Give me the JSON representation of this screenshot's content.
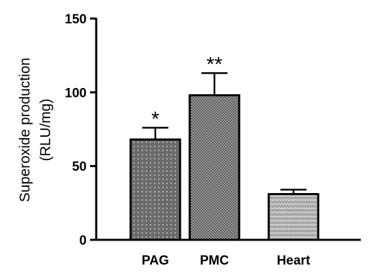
{
  "chart_data": {
    "type": "bar",
    "categories": [
      "PAG",
      "PMC",
      "Heart"
    ],
    "values": [
      68,
      98,
      31
    ],
    "errors": [
      8,
      15,
      3
    ],
    "annotations": [
      "*",
      "**",
      ""
    ],
    "ylabel_line1": "Superoxide production",
    "ylabel_line2": "(RLU/mg)",
    "xlabel": "",
    "title": "",
    "ylim": [
      0,
      150
    ],
    "yticks": [
      0,
      50,
      100,
      150
    ],
    "grid": false,
    "legend": "none",
    "bar_fills": [
      "#6b6b6b",
      "#5a5a5a",
      "#a8a8a8"
    ],
    "bar_patterns": [
      "dotted",
      "checkered",
      "scaled"
    ],
    "axis_color": "#000000"
  }
}
